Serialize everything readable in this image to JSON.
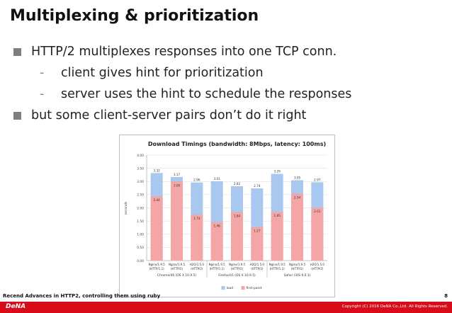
{
  "slide": {
    "title": "Multiplexing & prioritization",
    "bullets": [
      "HTTP/2 multiplexes responses into one TCP conn.",
      "client gives hint for prioritization",
      "server uses the hint to schedule the responses",
      "but some client-server pairs don’t do it right"
    ],
    "footer": "Recend Advances in HTTP2, controlling them using ruby",
    "page_number": "8",
    "logo": "DeNA",
    "copyright": "Copyright (C) 2016 DeNA Co.,Ltd. All Rights Reserved.",
    "bullet_color": "#7f7f7f",
    "accent_color": "#d80c18"
  },
  "chart_data": {
    "type": "bar",
    "title": "Download Timings (bandwidth: 8Mbps, latency: 100ms)",
    "ylabel": "seconds",
    "ylim": [
      0,
      4.0
    ],
    "yticks": [
      "0.00",
      "0.50",
      "1.00",
      "1.50",
      "2.00",
      "2.50",
      "3.00",
      "3.50",
      "4.00"
    ],
    "grid": true,
    "legend_position": "bottom",
    "categories": [
      "Nginx/1.9.5 (HTTP/1.1)",
      "Nginx/1.9.5 (HTTP/2)",
      "H2O/1.5.0 (HTTP/2)",
      "Nginx/1.9.5 (HTTP/1.1)",
      "Nginx/1.9.5 (HTTP/2)",
      "H2O/1.5.0 (HTTP/2)",
      "Nginx/1.9.5 (HTTP/1.1)",
      "Nginx/1.9.5 (HTTP/2)",
      "H2O/1.5.0 (HTTP/2)"
    ],
    "category_lines": [
      [
        "Nginx/1.9.5",
        "(HTTP/1.1)"
      ],
      [
        "Nginx/1.9.5",
        "(HTTP/2)"
      ],
      [
        "H2O/1.5.0",
        "(HTTP/2)"
      ],
      [
        "Nginx/1.9.5",
        "(HTTP/1.1)"
      ],
      [
        "Nginx/1.9.5",
        "(HTTP/2)"
      ],
      [
        "H2O/1.5.0",
        "(HTTP/2)"
      ],
      [
        "Nginx/1.9.5",
        "(HTTP/1.1)"
      ],
      [
        "Nginx/1.9.5",
        "(HTTP/2)"
      ],
      [
        "H2O/1.5.0",
        "(HTTP/2)"
      ]
    ],
    "groups": [
      {
        "name": "Chrome/46 (OS X 10.9.5)",
        "count": 3
      },
      {
        "name": "Firefox/41 (OS X 10.9.5)",
        "count": 3
      },
      {
        "name": "Safari (iOS 9.0.1)",
        "count": 3
      }
    ],
    "series": [
      {
        "name": "first-paint",
        "color": "#f4a6a6",
        "values": [
          2.44,
          3.0,
          1.74,
          1.46,
          1.84,
          1.27,
          1.85,
          2.54,
          2.01
        ]
      },
      {
        "name": "load",
        "color": "#a9c8ef",
        "values": [
          3.32,
          3.17,
          2.96,
          3.01,
          2.82,
          2.74,
          3.29,
          3.05,
          2.97
        ]
      }
    ],
    "value_labels": {
      "first-paint": [
        "2.44",
        "3.00",
        "1.74",
        "1.46",
        "1.84",
        "1.27",
        "1.85",
        "2.54",
        "2.01"
      ],
      "load": [
        "3.32",
        "3.17",
        "2.96",
        "3.01",
        "2.82",
        "2.74",
        "3.29",
        "3.05",
        "2.97"
      ]
    }
  }
}
